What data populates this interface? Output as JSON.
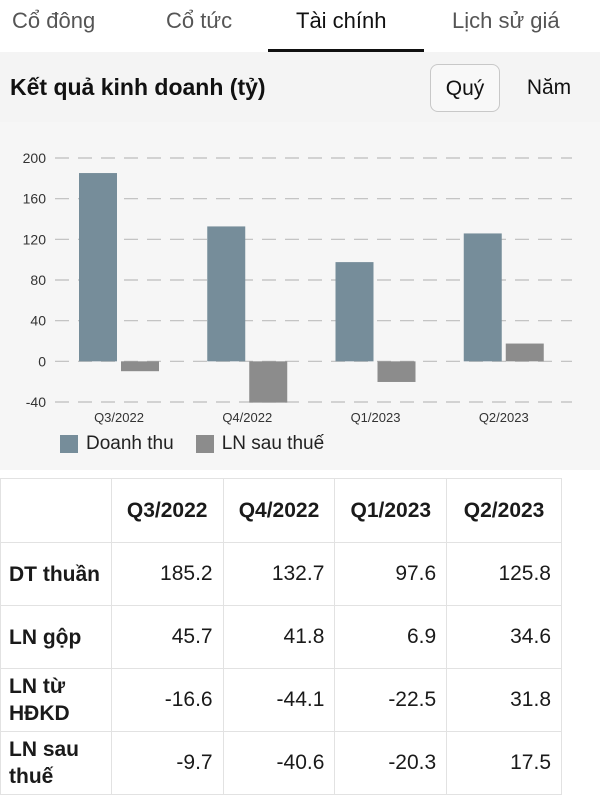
{
  "tabs": [
    {
      "label": "Cổ đông"
    },
    {
      "label": "Cổ tức"
    },
    {
      "label": "Tài chính"
    },
    {
      "label": "Lịch sử giá"
    }
  ],
  "section": {
    "title": "Kết quả kinh doanh (tỷ)",
    "quarter_label": "Quý",
    "year_label": "Năm"
  },
  "colors": {
    "revenue": "#768d9a",
    "profit": "#8c8c8c"
  },
  "chart_data": {
    "type": "bar",
    "categories": [
      "Q3/2022",
      "Q4/2022",
      "Q1/2023",
      "Q2/2023"
    ],
    "series": [
      {
        "name": "Doanh thu",
        "values": [
          185.2,
          132.7,
          97.6,
          125.8
        ]
      },
      {
        "name": "LN sau thuế",
        "values": [
          -9.7,
          -40.6,
          -20.3,
          17.5
        ]
      }
    ],
    "ylim": [
      -40,
      200
    ],
    "yticks": [
      "200",
      "160",
      "120",
      "80",
      "40",
      "0",
      "-40"
    ],
    "grid": true,
    "legend": "bottom-left"
  },
  "table": {
    "headers": [
      "",
      "Q3/2022",
      "Q4/2022",
      "Q1/2023",
      "Q2/2023"
    ],
    "rows": [
      {
        "label": "DT thuần",
        "label_lines": [
          "DT thuần"
        ],
        "values": [
          "185.2",
          "132.7",
          "97.6",
          "125.8"
        ]
      },
      {
        "label": "LN gộp",
        "label_lines": [
          "LN gộp"
        ],
        "values": [
          "45.7",
          "41.8",
          "6.9",
          "34.6"
        ]
      },
      {
        "label": "LN từ HĐKD",
        "label_lines": [
          "LN từ",
          "HĐKD"
        ],
        "values": [
          "-16.6",
          "-44.1",
          "-22.5",
          "31.8"
        ]
      },
      {
        "label": "LN sau thuế",
        "label_lines": [
          "LN sau",
          "thuế"
        ],
        "values": [
          "-9.7",
          "-40.6",
          "-20.3",
          "17.5"
        ]
      }
    ]
  }
}
